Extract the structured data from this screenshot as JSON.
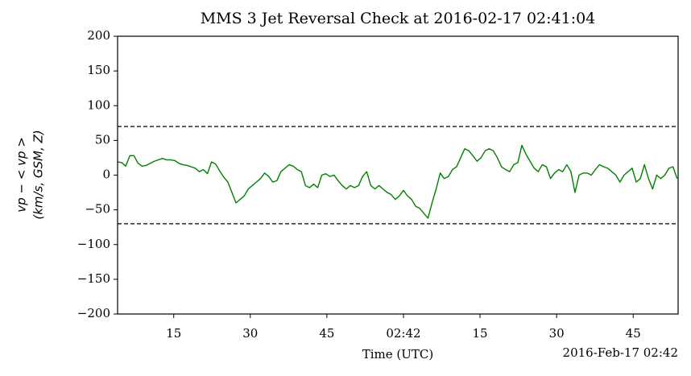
{
  "chart_data": {
    "type": "line",
    "title": "MMS 3 Jet Reversal Check at 2016-02-17 02:41:04",
    "xlabel": "Time (UTC)",
    "x_offset_label": "2016-Feb-17 02:42",
    "ylabel": [
      "vp − < vp >",
      "(km/s, GSM, Z)"
    ],
    "color": "#008000",
    "hlines": [
      70,
      -70
    ],
    "xlim": [
      4,
      113.8
    ],
    "xticks": [
      15,
      30,
      45,
      {
        "value": 60,
        "label": "02:42"
      },
      {
        "value": 75,
        "label": "15"
      },
      {
        "value": 90,
        "label": "30"
      },
      {
        "value": 105,
        "label": "45"
      }
    ],
    "ylim": [
      -200,
      200
    ],
    "yticks": [
      {
        "value": -200,
        "label": "−200"
      },
      {
        "value": -150,
        "label": "−150"
      },
      {
        "value": -100,
        "label": "−100"
      },
      {
        "value": -50,
        "label": "−50"
      },
      0,
      50,
      100,
      150,
      200
    ],
    "x": [
      4,
      4.8,
      5.6,
      6.4,
      7.2,
      8,
      8.8,
      9.6,
      10.4,
      11.2,
      12,
      12.8,
      13.6,
      14.4,
      15.2,
      16,
      16.8,
      17.6,
      18.4,
      19.2,
      20,
      20.8,
      21.6,
      22.4,
      23.2,
      24,
      24.8,
      25.6,
      26.4,
      27.2,
      28,
      28.8,
      29.6,
      30.4,
      31.2,
      32,
      32.8,
      33.6,
      34.4,
      35.2,
      36,
      36.8,
      37.6,
      38.4,
      39.2,
      40,
      40.8,
      41.6,
      42.4,
      43.2,
      44,
      44.8,
      45.6,
      46.4,
      47.2,
      48,
      48.8,
      49.6,
      50.4,
      51.2,
      52,
      52.8,
      53.6,
      54.4,
      55.2,
      56,
      56.8,
      57.6,
      58.4,
      59.2,
      60,
      60.8,
      61.6,
      62.4,
      63.2,
      64,
      64.8,
      65.6,
      66.4,
      67.2,
      68,
      68.8,
      69.6,
      70.4,
      71.2,
      72,
      72.8,
      73.6,
      74.4,
      75.2,
      76,
      76.8,
      77.6,
      78.4,
      79.2,
      80,
      80.8,
      81.6,
      82.4,
      83.2,
      84,
      84.8,
      85.6,
      86.4,
      87.2,
      88,
      88.8,
      89.6,
      90.4,
      91.2,
      92,
      92.8,
      93.6,
      94.4,
      95.2,
      96,
      96.8,
      97.6,
      98.4,
      99.2,
      100,
      100.8,
      101.6,
      102.4,
      103.2,
      104,
      104.8,
      105.6,
      106.4,
      107.2,
      108,
      108.8,
      109.6,
      110.4,
      111.2,
      112,
      112.8,
      113.6
    ],
    "values": [
      19,
      18,
      13,
      28,
      28,
      17,
      13,
      14,
      17,
      20,
      22,
      24,
      22,
      22,
      21,
      17,
      15,
      14,
      12,
      10,
      5,
      8,
      2,
      19,
      16,
      6,
      -3,
      -10,
      -25,
      -40,
      -35,
      -30,
      -20,
      -15,
      -10,
      -5,
      3,
      -2,
      -10,
      -8,
      5,
      10,
      15,
      13,
      8,
      5,
      -15,
      -18,
      -13,
      -18,
      0,
      2,
      -2,
      0,
      -8,
      -15,
      -20,
      -15,
      -18,
      -15,
      -2,
      5,
      -15,
      -20,
      -15,
      -20,
      -25,
      -28,
      -35,
      -30,
      -22,
      -30,
      -35,
      -45,
      -48,
      -55,
      -62,
      -40,
      -20,
      3,
      -5,
      -2,
      8,
      12,
      25,
      38,
      35,
      28,
      20,
      25,
      35,
      38,
      35,
      25,
      12,
      8,
      5,
      15,
      18,
      43,
      30,
      20,
      10,
      5,
      15,
      12,
      -5,
      3,
      8,
      5,
      15,
      5,
      -25,
      0,
      3,
      3,
      0,
      8,
      15,
      12,
      10,
      5,
      0,
      -10,
      0,
      5,
      10,
      -10,
      -5,
      15,
      -5,
      -20,
      0,
      -5,
      0,
      10,
      12,
      -5
    ]
  }
}
